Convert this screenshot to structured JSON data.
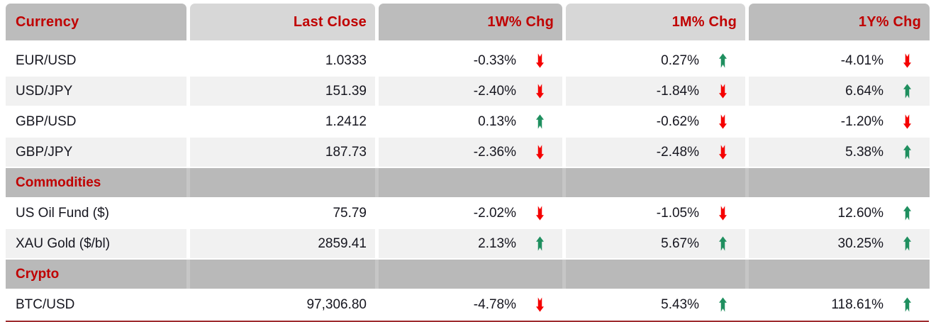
{
  "chart_data": {
    "type": "table",
    "columns": [
      "Currency",
      "Last Close",
      "1W% Chg",
      "1M% Chg",
      "1Y% Chg"
    ],
    "rows": [
      {
        "type": "data",
        "label": "EUR/USD",
        "last_close": "1.0333",
        "changes": [
          {
            "value": "-0.33%",
            "direction": "down"
          },
          {
            "value": "0.27%",
            "direction": "up"
          },
          {
            "value": "-4.01%",
            "direction": "down"
          }
        ]
      },
      {
        "type": "data",
        "label": "USD/JPY",
        "last_close": "151.39",
        "changes": [
          {
            "value": "-2.40%",
            "direction": "down"
          },
          {
            "value": "-1.84%",
            "direction": "down"
          },
          {
            "value": "6.64%",
            "direction": "up"
          }
        ]
      },
      {
        "type": "data",
        "label": "GBP/USD",
        "last_close": "1.2412",
        "changes": [
          {
            "value": "0.13%",
            "direction": "up"
          },
          {
            "value": "-0.62%",
            "direction": "down"
          },
          {
            "value": "-1.20%",
            "direction": "down"
          }
        ]
      },
      {
        "type": "data",
        "label": "GBP/JPY",
        "last_close": "187.73",
        "changes": [
          {
            "value": "-2.36%",
            "direction": "down"
          },
          {
            "value": "-2.48%",
            "direction": "down"
          },
          {
            "value": "5.38%",
            "direction": "up"
          }
        ]
      },
      {
        "type": "section",
        "label": "Commodities"
      },
      {
        "type": "data",
        "label": "US Oil Fund ($)",
        "last_close": "75.79",
        "changes": [
          {
            "value": "-2.02%",
            "direction": "down"
          },
          {
            "value": "-1.05%",
            "direction": "down"
          },
          {
            "value": "12.60%",
            "direction": "up"
          }
        ]
      },
      {
        "type": "data",
        "label": "XAU Gold ($/bl)",
        "last_close": "2859.41",
        "changes": [
          {
            "value": "2.13%",
            "direction": "up"
          },
          {
            "value": "5.67%",
            "direction": "up"
          },
          {
            "value": "30.25%",
            "direction": "up"
          }
        ]
      },
      {
        "type": "section",
        "label": "Crypto"
      },
      {
        "type": "data",
        "label": "BTC/USD",
        "last_close": "97,306.80",
        "changes": [
          {
            "value": "-4.78%",
            "direction": "down"
          },
          {
            "value": "5.43%",
            "direction": "up"
          },
          {
            "value": "118.61%",
            "direction": "up"
          }
        ]
      }
    ],
    "legend": "none",
    "grid": "off"
  },
  "colors": {
    "header_text": "#c00000",
    "header_bg_dark": "#bcbcbc",
    "header_bg_light": "#d7d7d7",
    "section_bg": "#b9b9b9",
    "row_stripe": "#f1f1f1",
    "value_text": "#16161f",
    "up_arrow": "#1f8f5f",
    "down_arrow": "#f50000",
    "bottom_rule": "#9e2b2e"
  }
}
